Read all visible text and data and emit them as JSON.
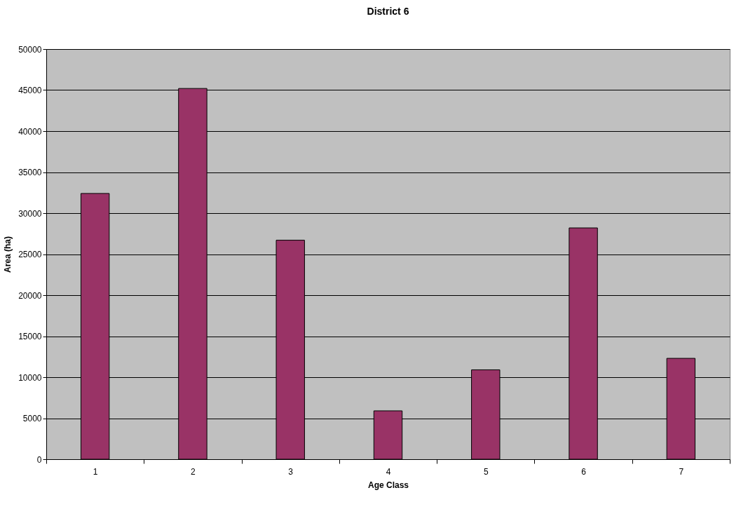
{
  "chart_data": {
    "type": "bar",
    "title": "District 6",
    "xlabel": "Age Class",
    "ylabel": "Area (ha)",
    "categories": [
      "1",
      "2",
      "3",
      "4",
      "5",
      "6",
      "7"
    ],
    "values": [
      32400,
      45200,
      26700,
      5900,
      10900,
      28200,
      12300
    ],
    "color": "#993366",
    "ylim": [
      0,
      50000
    ],
    "yticks": [
      0,
      5000,
      10000,
      15000,
      20000,
      25000,
      30000,
      35000,
      40000,
      45000,
      50000
    ],
    "grid": "y"
  }
}
